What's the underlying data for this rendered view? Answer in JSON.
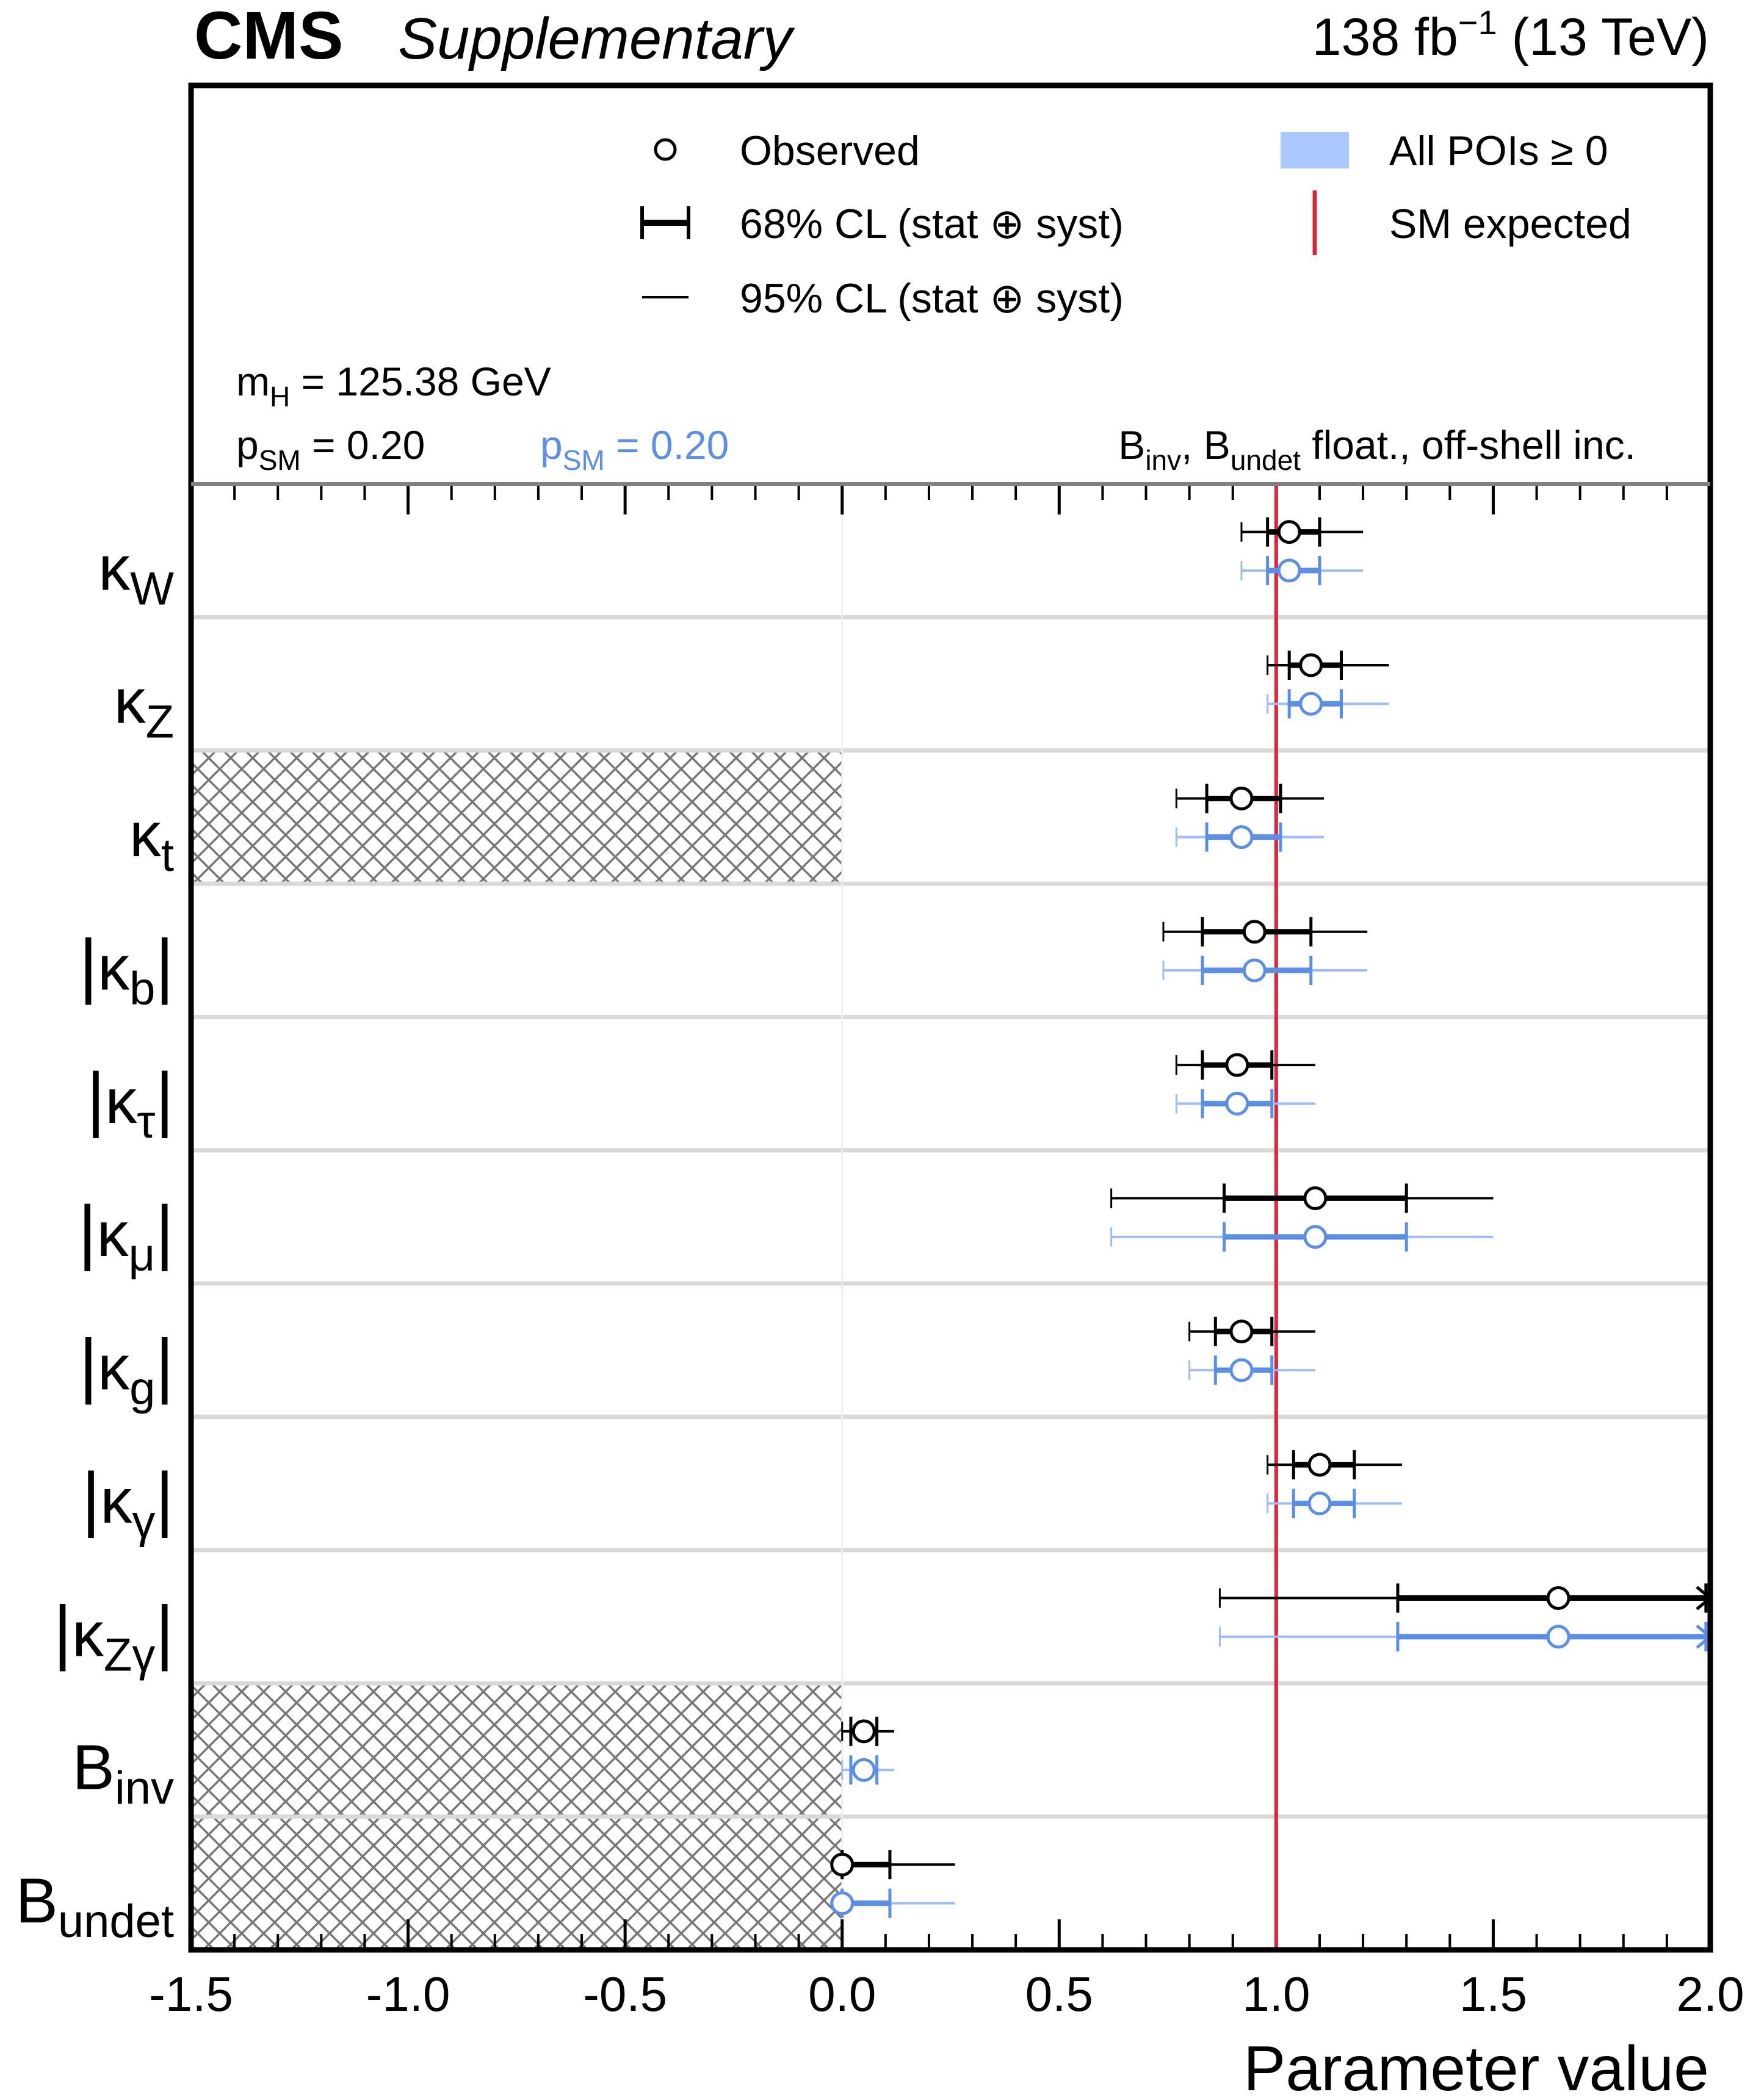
{
  "header": {
    "experiment": "CMS",
    "tag": "Supplementary",
    "lumi_main": "138 fb",
    "lumi_exp": "−1",
    "energy": " (13 TeV)"
  },
  "legend": {
    "observed": "Observed",
    "cl68": "68% CL (stat ⊕ syst)",
    "cl95": "95% CL (stat ⊕ syst)",
    "all_pois": "All POIs  ≥ 0",
    "sm_expected": "SM expected"
  },
  "annotations": {
    "mh_main": "m",
    "mh_sub": "H",
    "mh_rest": " = 125.38 GeV",
    "psm_main": "p",
    "psm_sub": "SM",
    "psm_black": " = 0.20",
    "psm_blue": " = 0.20",
    "binv_main": "B",
    "binv_sub": "inv",
    "binv_mid": ", B",
    "bundet_sub": "undet",
    "float_rest": " float., off-shell inc."
  },
  "colors": {
    "black": "#000000",
    "blue": "#5b8fe6",
    "blue_light": "#9dbdf4",
    "band": "#aac8fb",
    "sm_line": "#d6283b",
    "hatch": "#777777",
    "separator": "#d9d9d9",
    "frame": "#000000"
  },
  "chart_data": {
    "type": "scatter",
    "title": "",
    "xlabel": "Parameter value",
    "xlim": [
      -1.5,
      2.0
    ],
    "x_ticks": [
      "-1.5",
      "-1.0",
      "-0.5",
      "0.0",
      "0.5",
      "1.0",
      "1.5",
      "2.0"
    ],
    "x_tick_values": [
      -1.5,
      -1.0,
      -0.5,
      0.0,
      0.5,
      1.0,
      1.5,
      2.0
    ],
    "sm_value": 1.0,
    "excluded_region": [
      -1.5,
      0.0
    ],
    "parameters": [
      {
        "main": "κ",
        "sub": "W",
        "abs": false,
        "hatched": false,
        "value": 1.03,
        "cl68": [
          0.98,
          1.1
        ],
        "cl95": [
          0.92,
          1.2
        ]
      },
      {
        "main": "κ",
        "sub": "Z",
        "abs": false,
        "hatched": false,
        "value": 1.08,
        "cl68": [
          1.03,
          1.15
        ],
        "cl95": [
          0.98,
          1.26
        ]
      },
      {
        "main": "κ",
        "sub": "t",
        "abs": false,
        "hatched": true,
        "value": 0.92,
        "cl68": [
          0.84,
          1.01
        ],
        "cl95": [
          0.77,
          1.11
        ]
      },
      {
        "main": "κ",
        "sub": "b",
        "abs": true,
        "hatched": false,
        "value": 0.95,
        "cl68": [
          0.83,
          1.08
        ],
        "cl95": [
          0.74,
          1.21
        ]
      },
      {
        "main": "κ",
        "sub": "τ",
        "abs": true,
        "hatched": false,
        "value": 0.91,
        "cl68": [
          0.83,
          0.99
        ],
        "cl95": [
          0.77,
          1.09
        ]
      },
      {
        "main": "κ",
        "sub": "μ",
        "abs": true,
        "hatched": false,
        "value": 1.09,
        "cl68": [
          0.88,
          1.3
        ],
        "cl95": [
          0.62,
          1.5
        ]
      },
      {
        "main": "κ",
        "sub": "g",
        "abs": true,
        "hatched": false,
        "value": 0.92,
        "cl68": [
          0.86,
          0.99
        ],
        "cl95": [
          0.8,
          1.09
        ]
      },
      {
        "main": "κ",
        "sub": "γ",
        "abs": true,
        "hatched": false,
        "value": 1.1,
        "cl68": [
          1.04,
          1.18
        ],
        "cl95": [
          0.98,
          1.29
        ]
      },
      {
        "main": "κ",
        "sub": "Zγ",
        "abs": true,
        "hatched": false,
        "value": 1.65,
        "cl68": [
          1.28,
          1.99
        ],
        "cl95": [
          0.87,
          2.0
        ],
        "arrow": true
      },
      {
        "main": "B",
        "sub": "inv",
        "abs": false,
        "hatched": true,
        "value": 0.05,
        "cl68": [
          0.02,
          0.08
        ],
        "cl95": [
          0.0,
          0.12
        ]
      },
      {
        "main": "B",
        "sub": "undet",
        "abs": false,
        "hatched": true,
        "value": 0.0,
        "cl68": [
          0.0,
          0.11
        ],
        "cl95": [
          0.0,
          0.26
        ]
      }
    ]
  }
}
